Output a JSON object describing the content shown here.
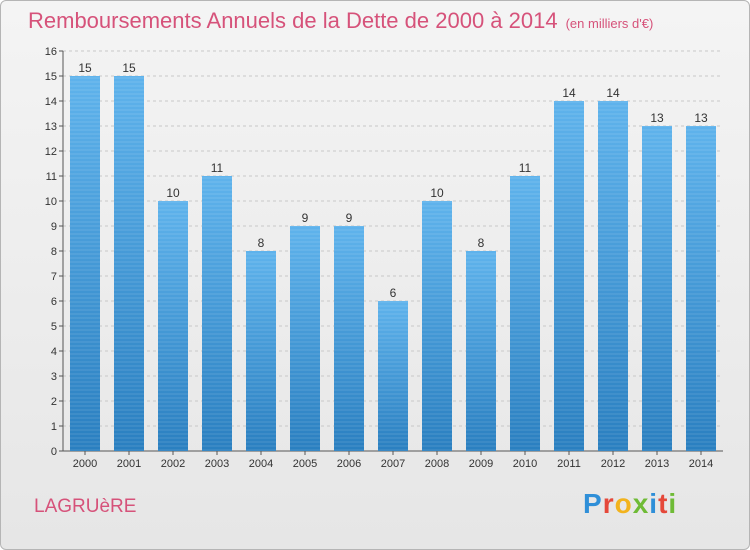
{
  "title": "Remboursements Annuels de la Dette de 2000 à 2014",
  "subtitle": "(en milliers d'€)",
  "commune": "LAGRUèRE",
  "logo": {
    "letters": [
      {
        "ch": "P",
        "color": "#2f8fd8"
      },
      {
        "ch": "r",
        "color": "#e5483a"
      },
      {
        "ch": "o",
        "color": "#f2b31d"
      },
      {
        "ch": "x",
        "color": "#6fbb36"
      },
      {
        "ch": "i",
        "color": "#2f8fd8"
      },
      {
        "ch": "t",
        "color": "#e5483a"
      },
      {
        "ch": "i",
        "color": "#6fbb36"
      }
    ]
  },
  "colors": {
    "bar_top": "#5fb3ec",
    "bar_bottom": "#2a7fc0",
    "title": "#d6527a",
    "grid": "#c8c8c8"
  },
  "chart_data": {
    "type": "bar",
    "categories": [
      "2000",
      "2001",
      "2002",
      "2003",
      "2004",
      "2005",
      "2006",
      "2007",
      "2008",
      "2009",
      "2010",
      "2011",
      "2012",
      "2013",
      "2014"
    ],
    "values": [
      15,
      15,
      10,
      11,
      8,
      9,
      9,
      6,
      10,
      8,
      11,
      14,
      14,
      13,
      13
    ],
    "data_labels": [
      "15",
      "15",
      "10",
      "11",
      "8",
      "9",
      "9",
      "6",
      "10",
      "8",
      "11",
      "14",
      "14",
      "13",
      "13"
    ],
    "yticks": [
      "0",
      "1",
      "2",
      "3",
      "4",
      "5",
      "6",
      "7",
      "8",
      "9",
      "10",
      "11",
      "12",
      "13",
      "14",
      "15",
      "16"
    ],
    "ylim": [
      0,
      16
    ],
    "grid": true
  }
}
